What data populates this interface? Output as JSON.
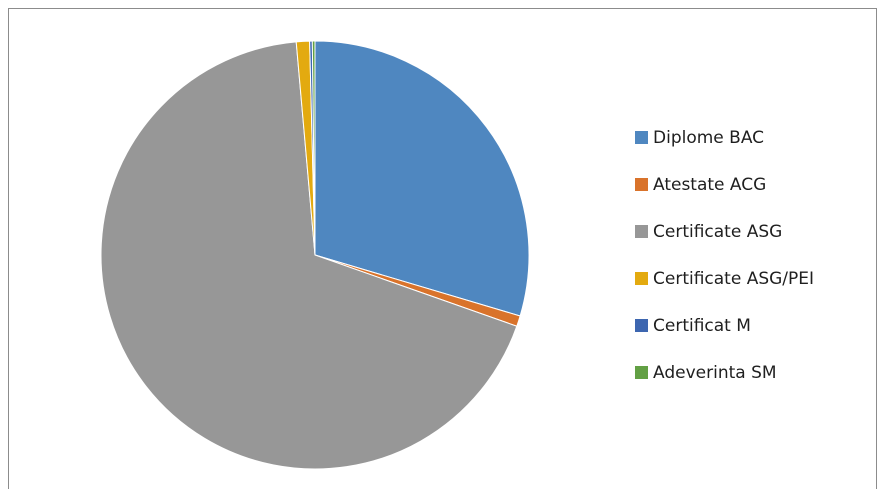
{
  "chart_data": {
    "type": "pie",
    "title": "",
    "slices": [
      {
        "label": "Diplome BAC",
        "value": 29.6,
        "color": "#4f87c0"
      },
      {
        "label": "Atestate ACG",
        "value": 0.8,
        "color": "#d9732b"
      },
      {
        "label": "Certificate ASG",
        "value": 68.2,
        "color": "#979797"
      },
      {
        "label": "Certificate ASG/PEI",
        "value": 1.0,
        "color": "#e3aa10"
      },
      {
        "label": "Certificat M",
        "value": 0.2,
        "color": "#3d66b0"
      },
      {
        "label": "Adeverinta SM",
        "value": 0.2,
        "color": "#62a044"
      }
    ],
    "legend_position": "right",
    "start_angle": "top",
    "direction": "clockwise"
  }
}
